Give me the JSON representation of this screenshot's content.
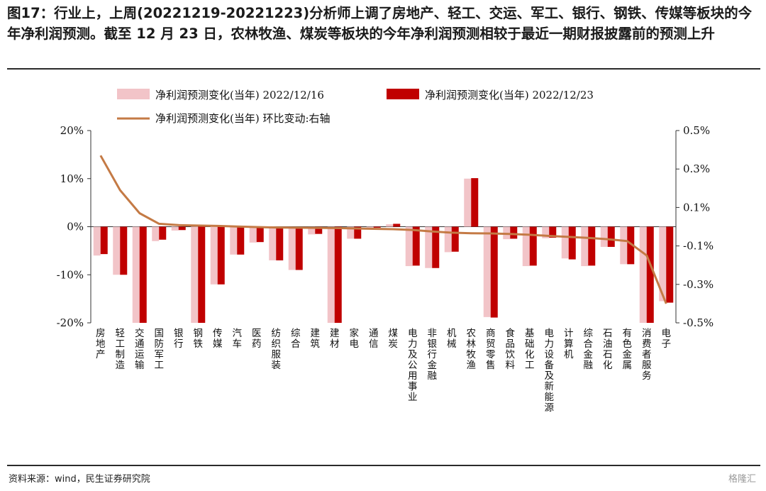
{
  "header": {
    "title": "图17：行业上，上周(20221219-20221223)分析师上调了房地产、轻工、交运、军工、银行、钢铁、传媒等板块的今年净利润预测。截至 12 月 23 日，农林牧渔、煤炭等板块的今年净利润预测相较于最近一期财报披露前的预测上升"
  },
  "footer": {
    "source": "资料来源：wind，民生证券研究院",
    "watermark": "格隆汇"
  },
  "chart_data": {
    "type": "bar",
    "categories": [
      "房地产",
      "轻工制造",
      "交通运输",
      "国防军工",
      "银行",
      "钢铁",
      "传媒",
      "汽车",
      "医药",
      "纺织服装",
      "综合",
      "建筑",
      "建材",
      "家电",
      "通信",
      "煤炭",
      "电力及公用事业",
      "非银行金融",
      "机械",
      "农林牧渔",
      "商贸零售",
      "食品饮料",
      "基础化工",
      "电力设备及新能源",
      "计算机",
      "综合金融",
      "石油石化",
      "有色金属",
      "消费者服务",
      "电子"
    ],
    "series": [
      {
        "name": "净利润预测变化(当年) 2022/12/16",
        "type": "bar",
        "axis": "left",
        "color": "#f2c4c8",
        "values": [
          -6.0,
          -10.0,
          -20.5,
          -3.0,
          -0.8,
          -20.5,
          -12.0,
          -5.8,
          -3.3,
          -7.0,
          -9.0,
          -1.6,
          -20.5,
          -2.5,
          -0.2,
          0.5,
          -8.2,
          -8.6,
          -5.3,
          10.0,
          -18.8,
          -2.6,
          -8.2,
          -2.4,
          -6.6,
          -8.2,
          -4.2,
          -7.8,
          -20.5,
          -15.5
        ]
      },
      {
        "name": "净利润预测变化(当年) 2022/12/23",
        "type": "bar",
        "axis": "left",
        "color": "#c00000",
        "values": [
          -5.7,
          -10.0,
          -20.5,
          -2.7,
          -0.7,
          -20.5,
          -12.0,
          -5.8,
          -3.2,
          -7.0,
          -9.0,
          -1.5,
          -20.5,
          -2.5,
          -0.2,
          0.6,
          -8.1,
          -8.6,
          -5.2,
          10.1,
          -18.9,
          -2.5,
          -8.1,
          -2.3,
          -6.8,
          -8.1,
          -4.2,
          -7.8,
          -20.5,
          -15.8
        ]
      },
      {
        "name": "净利润预测变化(当年) 环比变动:右轴",
        "type": "line",
        "axis": "right",
        "color": "#c47a45",
        "values": [
          0.37,
          0.19,
          0.07,
          0.015,
          0.008,
          0.006,
          0.004,
          0.001,
          -0.002,
          -0.004,
          -0.005,
          -0.006,
          -0.007,
          -0.009,
          -0.011,
          -0.013,
          -0.017,
          -0.025,
          -0.031,
          -0.034,
          -0.035,
          -0.038,
          -0.042,
          -0.048,
          -0.053,
          -0.058,
          -0.065,
          -0.075,
          -0.15,
          -0.4
        ]
      }
    ],
    "y_left": {
      "min": -20,
      "max": 20,
      "ticks": [
        20,
        10,
        0,
        -10,
        -20
      ],
      "tick_labels": [
        "20%",
        "10%",
        "0%",
        "-10%",
        "-20%"
      ]
    },
    "y_right": {
      "min": -0.5,
      "max": 0.5,
      "ticks": [
        0.5,
        0.3,
        0.1,
        -0.1,
        -0.3,
        -0.5
      ],
      "tick_labels": [
        "0.5%",
        "0.3%",
        "0.1%",
        "-0.1%",
        "-0.3%",
        "-0.5%"
      ]
    },
    "grid": false,
    "legend_position": "top"
  }
}
